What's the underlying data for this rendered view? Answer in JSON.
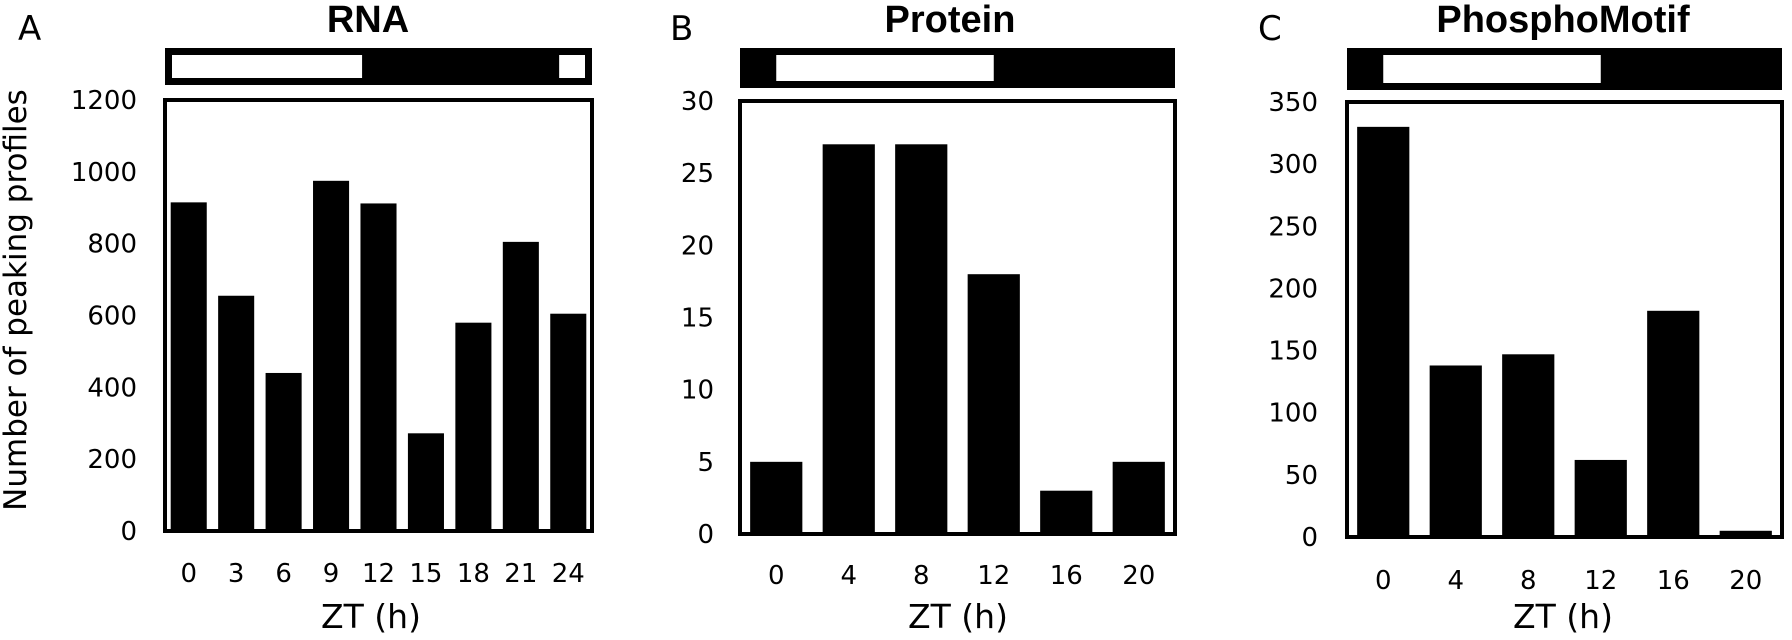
{
  "figure": {
    "ylabel": "Number of peaking profiles"
  },
  "chart_data": [
    {
      "type": "bar",
      "panel": "A",
      "title": "RNA",
      "xlabel": "ZT (h)",
      "ylabel": "Number of peaking profiles",
      "categories": [
        "0",
        "3",
        "6",
        "9",
        "12",
        "15",
        "18",
        "21",
        "24"
      ],
      "values": [
        915,
        655,
        440,
        975,
        912,
        272,
        580,
        805,
        605
      ],
      "ylim": [
        0,
        1200
      ],
      "yticks": [
        0,
        200,
        400,
        600,
        800,
        1000,
        1200
      ],
      "light_dark_bar": [
        {
          "phase": "light",
          "from": 0,
          "to": 12
        },
        {
          "phase": "dark",
          "from": 12,
          "to": 24
        },
        {
          "phase": "light",
          "from": 24,
          "to": 26
        }
      ],
      "light_dark_range": [
        0,
        26
      ],
      "grid": false,
      "color": "#000000"
    },
    {
      "type": "bar",
      "panel": "B",
      "title": "Protein",
      "xlabel": "ZT (h)",
      "categories": [
        "0",
        "4",
        "8",
        "12",
        "16",
        "20"
      ],
      "values": [
        5,
        27,
        27,
        18,
        3,
        5
      ],
      "ylim": [
        0,
        30
      ],
      "yticks": [
        0,
        5,
        10,
        15,
        20,
        25,
        30
      ],
      "light_dark_bar": [
        {
          "phase": "dark",
          "from": 0,
          "to": 2
        },
        {
          "phase": "light",
          "from": 2,
          "to": 14
        },
        {
          "phase": "dark",
          "from": 14,
          "to": 24
        }
      ],
      "light_dark_range": [
        0,
        24
      ],
      "grid": false,
      "color": "#000000"
    },
    {
      "type": "bar",
      "panel": "C",
      "title": "PhosphoMotif",
      "xlabel": "ZT (h)",
      "categories": [
        "0",
        "4",
        "8",
        "12",
        "16",
        "20"
      ],
      "values": [
        330,
        138,
        147,
        62,
        182,
        5
      ],
      "ylim": [
        0,
        350
      ],
      "yticks": [
        0,
        50,
        100,
        150,
        200,
        250,
        300,
        350
      ],
      "light_dark_bar": [
        {
          "phase": "dark",
          "from": 0,
          "to": 2
        },
        {
          "phase": "light",
          "from": 2,
          "to": 14
        },
        {
          "phase": "dark",
          "from": 14,
          "to": 24
        }
      ],
      "light_dark_range": [
        0,
        24
      ],
      "grid": false,
      "color": "#000000"
    }
  ]
}
